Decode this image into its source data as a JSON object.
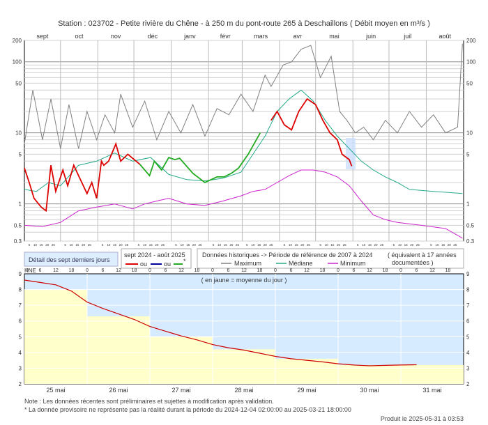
{
  "title": "Station : 023702      -  Petite rivière du Chêne - à 250 m du pont-route 265 à Deschaillons   ( Débit moyen en m³/s )",
  "months": [
    "sept",
    "oct",
    "nov",
    "déc",
    "janv",
    "févr",
    "mars",
    "avr",
    "mai",
    "juin",
    "juil",
    "août"
  ],
  "day_ticks": [
    "5",
    "10",
    "15",
    "20",
    "25"
  ],
  "legend": {
    "recent_label": "Détail des sept derniers jours",
    "period_label": "sept 2024 - août 2025",
    "ou1": "ou",
    "ou2": "ou",
    "star": "*",
    "hist_label": "Données historiques -> Période de référence  de 2007 à 2024",
    "equiv_label": "( équivalent à 17 années",
    "equiv_label2": "documentées )",
    "maximum": "Maximum",
    "mediane": "Médiane",
    "minimum": "Minimum"
  },
  "colors": {
    "current": "#dd0000",
    "provisional": "#22aa22",
    "maximum": "#808080",
    "mediane": "#22aa88",
    "minimum": "#cc22cc",
    "recent_band": "#cce8ff",
    "recent_fill": "#ffffcc",
    "recent_line": "#cc0000",
    "preliminary": "#000099"
  },
  "chart_data": [
    {
      "type": "line",
      "title": "Station : 023702      -  Petite rivière du Chêne - à 250 m du pont-route 265 à Deschaillons   ( Débit moyen en m³/s )",
      "y_scale": "log",
      "ylim": [
        0.3,
        200
      ],
      "y_ticks": [
        "200",
        "100",
        "50",
        "10",
        "5",
        "1",
        "0.5",
        "0.3"
      ],
      "series": [
        {
          "name": "Maximum",
          "points": [
            [
              0,
              7
            ],
            [
              7,
              40
            ],
            [
              15,
              8
            ],
            [
              22,
              30
            ],
            [
              30,
              6
            ],
            [
              37,
              25
            ],
            [
              45,
              6
            ],
            [
              52,
              20
            ],
            [
              60,
              8
            ],
            [
              67,
              18
            ],
            [
              75,
              10
            ],
            [
              80,
              35
            ],
            [
              90,
              12
            ],
            [
              100,
              28
            ],
            [
              110,
              8
            ],
            [
              120,
              20
            ],
            [
              130,
              10
            ],
            [
              140,
              25
            ],
            [
              150,
              9
            ],
            [
              160,
              22
            ],
            [
              170,
              18
            ],
            [
              180,
              35
            ],
            [
              190,
              20
            ],
            [
              200,
              65
            ],
            [
              205,
              45
            ],
            [
              215,
              90
            ],
            [
              222,
              100
            ],
            [
              230,
              150
            ],
            [
              238,
              170
            ],
            [
              246,
              60
            ],
            [
              255,
              120
            ],
            [
              262,
              20
            ],
            [
              268,
              15
            ],
            [
              275,
              10
            ],
            [
              282,
              12
            ],
            [
              290,
              8
            ],
            [
              300,
              15
            ],
            [
              310,
              10
            ],
            [
              320,
              20
            ],
            [
              330,
              12
            ],
            [
              340,
              18
            ],
            [
              350,
              10
            ],
            [
              360,
              12
            ],
            [
              364,
              180
            ]
          ]
        },
        {
          "name": "Médiane",
          "points": [
            [
              0,
              1.6
            ],
            [
              10,
              1.5
            ],
            [
              20,
              2
            ],
            [
              30,
              1.8
            ],
            [
              45,
              3.5
            ],
            [
              60,
              4
            ],
            [
              75,
              5.2
            ],
            [
              90,
              4
            ],
            [
              105,
              4.5
            ],
            [
              120,
              2.6
            ],
            [
              135,
              2.2
            ],
            [
              150,
              2.1
            ],
            [
              165,
              2.3
            ],
            [
              180,
              2.8
            ],
            [
              190,
              5
            ],
            [
              200,
              9
            ],
            [
              210,
              20
            ],
            [
              220,
              30
            ],
            [
              230,
              40
            ],
            [
              240,
              28
            ],
            [
              250,
              15
            ],
            [
              260,
              9
            ],
            [
              270,
              6
            ],
            [
              280,
              4
            ],
            [
              290,
              3
            ],
            [
              300,
              2.4
            ],
            [
              310,
              2
            ],
            [
              320,
              1.6
            ],
            [
              340,
              1.5
            ],
            [
              364,
              1.4
            ]
          ]
        },
        {
          "name": "Minimum",
          "points": [
            [
              0,
              0.5
            ],
            [
              15,
              0.48
            ],
            [
              30,
              0.55
            ],
            [
              45,
              0.8
            ],
            [
              60,
              0.9
            ],
            [
              75,
              1.0
            ],
            [
              90,
              0.85
            ],
            [
              100,
              1.0
            ],
            [
              110,
              1.1
            ],
            [
              120,
              1.2
            ],
            [
              135,
              1.0
            ],
            [
              150,
              0.95
            ],
            [
              165,
              1.1
            ],
            [
              180,
              1.3
            ],
            [
              190,
              1.5
            ],
            [
              200,
              1.6
            ],
            [
              210,
              2
            ],
            [
              220,
              2.5
            ],
            [
              230,
              3
            ],
            [
              240,
              3
            ],
            [
              250,
              2.8
            ],
            [
              260,
              2.4
            ],
            [
              270,
              1.8
            ],
            [
              280,
              1.1
            ],
            [
              290,
              0.7
            ],
            [
              300,
              0.6
            ],
            [
              310,
              0.55
            ],
            [
              330,
              0.5
            ],
            [
              350,
              0.45
            ],
            [
              364,
              0.33
            ]
          ]
        },
        {
          "name": "sept 2024 - août 2025",
          "points": [
            [
              0,
              3.2
            ],
            [
              4,
              2.0
            ],
            [
              8,
              1.2
            ],
            [
              14,
              0.9
            ],
            [
              18,
              0.8
            ],
            [
              22,
              3.5
            ],
            [
              26,
              1.5
            ],
            [
              32,
              3
            ],
            [
              36,
              1.8
            ],
            [
              41,
              3.5
            ],
            [
              46,
              2.3
            ],
            [
              52,
              1.4
            ],
            [
              56,
              2
            ],
            [
              60,
              1.2
            ],
            [
              64,
              4
            ],
            [
              66,
              3.5
            ],
            [
              70,
              4
            ],
            [
              76,
              7
            ],
            [
              80,
              4
            ],
            [
              86,
              5
            ],
            [
              96,
              3.6
            ],
            [
              104,
              2.5
            ],
            [
              108,
              4
            ],
            [
              114,
              3
            ],
            [
              120,
              4.5
            ],
            [
              125,
              4.2
            ],
            [
              129,
              4.4
            ],
            [
              140,
              2.7
            ],
            [
              150,
              2.0
            ],
            [
              160,
              2.4
            ],
            [
              166,
              2.4
            ],
            [
              172,
              2.7
            ],
            [
              178,
              3.2
            ],
            [
              182,
              4
            ],
            [
              186,
              5
            ],
            [
              196,
              10
            ],
            [
              205,
              15
            ],
            [
              210,
              20
            ],
            [
              216,
              13
            ],
            [
              222,
              11
            ],
            [
              228,
              20
            ],
            [
              235,
              30
            ],
            [
              242,
              25
            ],
            [
              248,
              15
            ],
            [
              254,
              10
            ],
            [
              260,
              8
            ],
            [
              264,
              5
            ],
            [
              270,
              4.2
            ],
            [
              272,
              3.4
            ]
          ]
        }
      ]
    },
    {
      "type": "area",
      "title": "",
      "ylim": [
        2,
        9
      ],
      "y_ticks": [
        "2",
        "3",
        "4",
        "5",
        "6",
        "7",
        "8",
        "9"
      ],
      "y_axis_label": "HNE",
      "note": "( en jaune = moyenne du jour )",
      "categories": [
        "25 mai",
        "26 mai",
        "27 mai",
        "28 mai",
        "29 mai",
        "30 mai",
        "31 mai"
      ],
      "hour_ticks": [
        "0",
        "6",
        "12",
        "18"
      ],
      "daily_mean": [
        8.0,
        6.3,
        5.0,
        4.2,
        3.6,
        3.2,
        3.2
      ],
      "recent_points": [
        [
          0,
          8.6
        ],
        [
          6,
          8.45
        ],
        [
          12,
          8.3
        ],
        [
          18,
          7.9
        ],
        [
          24,
          7.2
        ],
        [
          30,
          6.8
        ],
        [
          36,
          6.45
        ],
        [
          42,
          6.1
        ],
        [
          48,
          5.65
        ],
        [
          54,
          5.35
        ],
        [
          60,
          5.05
        ],
        [
          66,
          4.8
        ],
        [
          72,
          4.5
        ],
        [
          78,
          4.3
        ],
        [
          84,
          4.15
        ],
        [
          90,
          3.95
        ],
        [
          96,
          3.75
        ],
        [
          102,
          3.6
        ],
        [
          108,
          3.5
        ],
        [
          114,
          3.4
        ],
        [
          120,
          3.28
        ],
        [
          126,
          3.2
        ],
        [
          132,
          3.15
        ],
        [
          138,
          3.18
        ],
        [
          144,
          3.2
        ],
        [
          150,
          3.22
        ]
      ]
    }
  ],
  "notes": {
    "line1": "Note : Les données récentes sont préliminaires et sujettes à modification après validation.",
    "line2": "* La donnée provisoire ne représente pas la réalité durant la période du 2024-12-04 02:00:00 au 2025-03-21 18:00:00"
  },
  "produced": "Produit le 2025-05-31 à 03:53"
}
